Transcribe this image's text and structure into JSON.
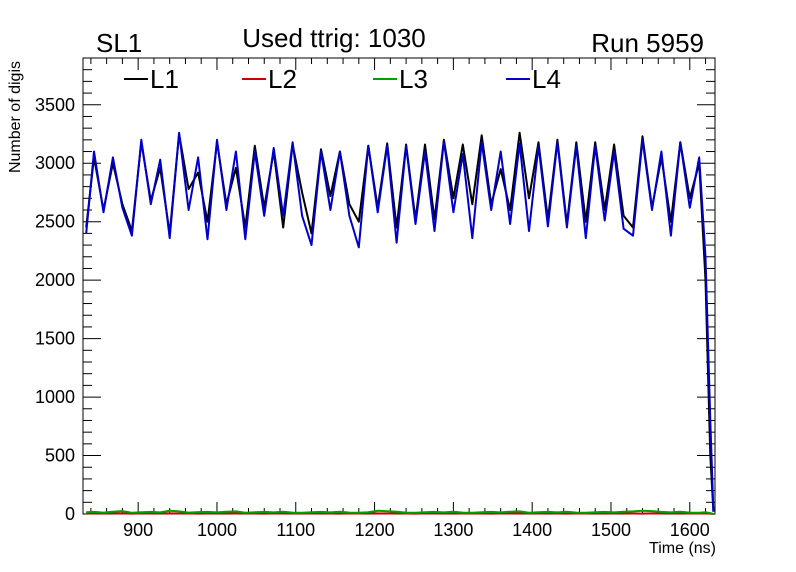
{
  "header": {
    "left": "SL1",
    "center": "Used ttrig: 1030",
    "right": "Run 5959"
  },
  "chart_data": {
    "type": "line",
    "title": "Used ttrig: 1030",
    "xlabel": "Time (ns)",
    "ylabel": "Number of digis",
    "xlim": [
      830,
      1632
    ],
    "ylim": [
      0,
      3900
    ],
    "xticks": [
      900,
      1000,
      1100,
      1200,
      1300,
      1400,
      1500,
      1600
    ],
    "yticks": [
      0,
      500,
      1000,
      1500,
      2000,
      2500,
      3000,
      3500
    ],
    "legend_position": "top",
    "x": [
      834,
      844,
      856,
      868,
      880,
      892,
      904,
      916,
      928,
      940,
      952,
      964,
      976,
      988,
      1000,
      1012,
      1024,
      1036,
      1048,
      1060,
      1072,
      1084,
      1096,
      1108,
      1120,
      1132,
      1144,
      1156,
      1168,
      1180,
      1192,
      1204,
      1216,
      1228,
      1240,
      1252,
      1264,
      1276,
      1288,
      1300,
      1312,
      1324,
      1336,
      1348,
      1360,
      1372,
      1384,
      1396,
      1408,
      1420,
      1432,
      1444,
      1456,
      1468,
      1480,
      1492,
      1504,
      1516,
      1528,
      1540,
      1552,
      1564,
      1576,
      1588,
      1600,
      1612,
      1620,
      1626,
      1630
    ],
    "series": [
      {
        "name": "L1",
        "color": "#000000",
        "values": [
          2450,
          3050,
          2600,
          3000,
          2650,
          2420,
          3180,
          2680,
          2960,
          2400,
          3250,
          2780,
          2920,
          2500,
          3180,
          2650,
          2960,
          2450,
          3150,
          2620,
          3100,
          2450,
          3160,
          2750,
          2400,
          3120,
          2720,
          3100,
          2650,
          2500,
          3150,
          2620,
          3170,
          2450,
          3160,
          2520,
          3160,
          2520,
          3200,
          2700,
          3160,
          2650,
          3240,
          2650,
          2950,
          2600,
          3260,
          2700,
          3180,
          2520,
          3200,
          2480,
          3180,
          2500,
          3180,
          2600,
          3160,
          2550,
          2450,
          3230,
          2620,
          3050,
          2500,
          3180,
          2700,
          3000,
          2000,
          500,
          20
        ]
      },
      {
        "name": "L2",
        "color": "#cc0000",
        "values": [
          5,
          4,
          6,
          5,
          4,
          3,
          5,
          4,
          6,
          5,
          4,
          5,
          3,
          4,
          5,
          6,
          4,
          5,
          4,
          3,
          5,
          4,
          6,
          5,
          4,
          5,
          4,
          3,
          5,
          4,
          6,
          5,
          4,
          5,
          4,
          3,
          5,
          4,
          6,
          5,
          4,
          5,
          4,
          3,
          5,
          4,
          6,
          5,
          4,
          5,
          4,
          3,
          5,
          4,
          6,
          5,
          4,
          5,
          4,
          3,
          5,
          4,
          6,
          5,
          4,
          5,
          4,
          3,
          0
        ]
      },
      {
        "name": "L3",
        "color": "#00a000",
        "values": [
          15,
          18,
          12,
          20,
          25,
          10,
          15,
          18,
          14,
          28,
          22,
          12,
          16,
          18,
          14,
          20,
          22,
          10,
          15,
          18,
          14,
          20,
          12,
          10,
          15,
          18,
          14,
          20,
          12,
          10,
          15,
          28,
          24,
          20,
          12,
          10,
          15,
          18,
          14,
          20,
          12,
          10,
          15,
          18,
          14,
          20,
          22,
          10,
          15,
          18,
          14,
          20,
          12,
          10,
          15,
          18,
          14,
          20,
          22,
          28,
          25,
          18,
          14,
          20,
          12,
          10,
          15,
          8,
          0
        ]
      },
      {
        "name": "L4",
        "color": "#0000cc",
        "values": [
          2400,
          3100,
          2580,
          3050,
          2620,
          2380,
          3200,
          2650,
          3030,
          2360,
          3260,
          2600,
          3050,
          2350,
          3200,
          2600,
          3100,
          2350,
          3100,
          2550,
          3130,
          2550,
          3180,
          2550,
          2300,
          3100,
          2600,
          3100,
          2550,
          2280,
          3150,
          2580,
          3150,
          2320,
          3150,
          2480,
          3100,
          2420,
          3190,
          2580,
          3080,
          2360,
          3180,
          2600,
          3100,
          2480,
          3170,
          2420,
          3150,
          2460,
          3180,
          2450,
          3150,
          2360,
          3150,
          2510,
          3100,
          2440,
          2380,
          3200,
          2600,
          3100,
          2380,
          3180,
          2620,
          3050,
          2200,
          800,
          20
        ]
      }
    ]
  }
}
